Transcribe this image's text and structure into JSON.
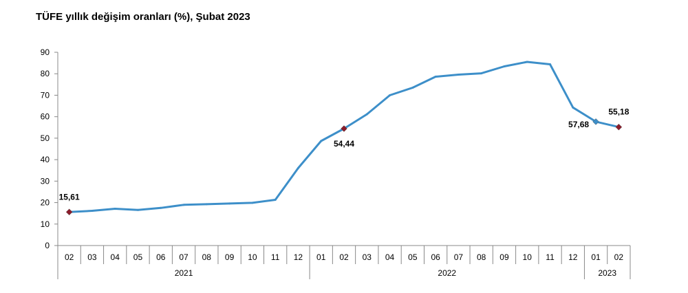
{
  "chart_data": {
    "type": "line",
    "title": "TÜFE yıllık değişim oranları (%), Şubat 2023",
    "xlabel": "",
    "ylabel": "",
    "ylim": [
      0,
      90
    ],
    "yticks": [
      0,
      10,
      20,
      30,
      40,
      50,
      60,
      70,
      80,
      90
    ],
    "grid": false,
    "colors": {
      "line": "#3d8fc9",
      "highlight_marker": "#8b1c2b",
      "axis": "#888888"
    },
    "categories": [
      "02",
      "03",
      "04",
      "05",
      "06",
      "07",
      "08",
      "09",
      "10",
      "11",
      "12",
      "01",
      "02",
      "03",
      "04",
      "05",
      "06",
      "07",
      "08",
      "09",
      "10",
      "11",
      "12",
      "01",
      "02"
    ],
    "year_groups": [
      {
        "label": "2021",
        "count": 11
      },
      {
        "label": "2022",
        "count": 12
      },
      {
        "label": "2023",
        "count": 2
      }
    ],
    "series": [
      {
        "values": [
          15.61,
          16.19,
          17.14,
          16.59,
          17.53,
          18.95,
          19.25,
          19.58,
          19.89,
          21.31,
          36.08,
          48.69,
          54.44,
          61.14,
          69.97,
          73.5,
          78.62,
          79.6,
          80.21,
          83.45,
          85.51,
          84.39,
          64.27,
          57.68,
          55.18
        ]
      }
    ],
    "annotations": [
      {
        "index": 0,
        "label": "15,61",
        "position": "above"
      },
      {
        "index": 12,
        "label": "54,44",
        "position": "below"
      },
      {
        "index": 23,
        "label": "57,68",
        "position": "left"
      },
      {
        "index": 24,
        "label": "55,18",
        "position": "above"
      }
    ]
  }
}
